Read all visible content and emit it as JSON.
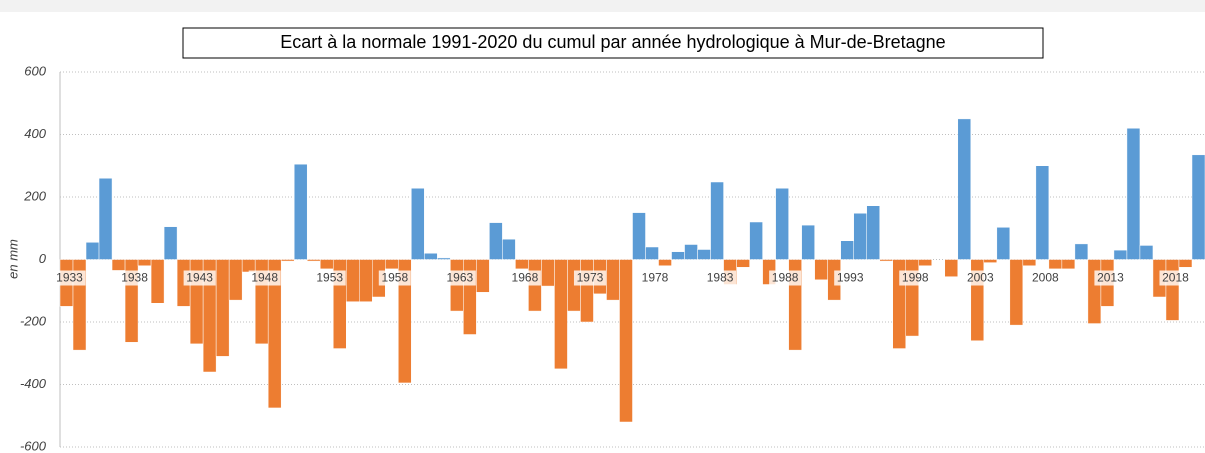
{
  "chart_data": {
    "type": "bar",
    "title": "Ecart à la normale 1991-2020 du cumul par année hydrologique à Mur-de-Bretagne",
    "y_label": "en mm",
    "categories": [
      "1933",
      null,
      null,
      null,
      null,
      "1938",
      null,
      null,
      null,
      null,
      "1943",
      null,
      null,
      null,
      null,
      "1948",
      null,
      null,
      null,
      null,
      "1953",
      null,
      null,
      null,
      null,
      "1958",
      null,
      null,
      null,
      null,
      "1963",
      null,
      null,
      null,
      null,
      "1968",
      null,
      null,
      null,
      null,
      "1973",
      null,
      null,
      null,
      null,
      "1978",
      null,
      null,
      null,
      null,
      "1983",
      null,
      null,
      null,
      null,
      "1988",
      null,
      null,
      null,
      null,
      "1993",
      null,
      null,
      null,
      null,
      "1998",
      null,
      null,
      null,
      null,
      "2003",
      null,
      null,
      null,
      null,
      "2008",
      null,
      null,
      null,
      null,
      "2013",
      null,
      null,
      null,
      null,
      "2018",
      null,
      null
    ],
    "values": [
      -150,
      -290,
      55,
      260,
      -35,
      -265,
      -20,
      -140,
      105,
      -150,
      -270,
      -360,
      -310,
      -130,
      -40,
      -270,
      -475,
      -5,
      305,
      -5,
      -30,
      -285,
      -135,
      -135,
      -120,
      -30,
      -395,
      228,
      20,
      5,
      -165,
      -240,
      -105,
      118,
      65,
      -30,
      -165,
      -85,
      -350,
      -165,
      -200,
      -110,
      -130,
      -520,
      150,
      40,
      -20,
      25,
      48,
      32,
      248,
      -80,
      -25,
      120,
      -80,
      228,
      -290,
      110,
      -65,
      -130,
      60,
      148,
      172,
      -5,
      -285,
      -245,
      -20,
      0,
      -55,
      450,
      -260,
      -10,
      103,
      -210,
      -20,
      300,
      -30,
      -30,
      50,
      -205,
      -150,
      30,
      420,
      45,
      -120,
      -195,
      -25,
      335
    ],
    "color": "#5b9bd5",
    "negative_color": "#ed7d31",
    "ylim": [
      -600,
      600
    ],
    "yticks": [
      -600,
      -400,
      -200,
      0,
      200,
      400,
      600
    ],
    "grid": true
  }
}
